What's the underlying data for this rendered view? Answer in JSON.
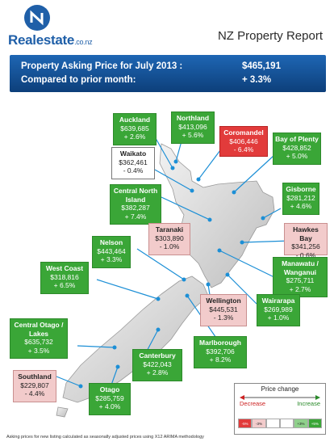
{
  "header": {
    "logo_text": "Realestate",
    "logo_suffix": ".co.nz",
    "report_title": "NZ Property Report"
  },
  "banner": {
    "line1_label": "Property Asking Price for July 2013 :",
    "line1_value": "$465,191",
    "line2_label": "Compared to prior month:",
    "line2_value": "+ 3.3%"
  },
  "colors": {
    "increase": "#3aa637",
    "large_decrease": "#e23b3b",
    "small_decrease": "#f2cbcb",
    "neutral": "#ffffff",
    "banner": "#1e66b4"
  },
  "regions": [
    {
      "name": "Auckland",
      "price": "$639,685",
      "change": "+ 2.6%",
      "color": "green"
    },
    {
      "name": "Northland",
      "price": "$413,096",
      "change": "+ 5.6%",
      "color": "green"
    },
    {
      "name": "Coromandel",
      "price": "$406,446",
      "change": "- 6.4%",
      "color": "red"
    },
    {
      "name": "Bay of Plenty",
      "price": "$428,852",
      "change": "+ 5.0%",
      "color": "green"
    },
    {
      "name": "Waikato",
      "price": "$362,461",
      "change": "- 0.4%",
      "color": "white"
    },
    {
      "name": "Central North Island",
      "price": "$382,287",
      "change": "+ 7.4%",
      "color": "green"
    },
    {
      "name": "Gisborne",
      "price": "$281,212",
      "change": "+ 4.6%",
      "color": "green"
    },
    {
      "name": "Taranaki",
      "price": "$303,890",
      "change": "- 1.0%",
      "color": "pink"
    },
    {
      "name": "Hawkes Bay",
      "price": "$341,256",
      "change": "- 0.6%",
      "color": "pink"
    },
    {
      "name": "Manawatu / Wanganui",
      "price": "$275,711",
      "change": "+ 2.7%",
      "color": "green"
    },
    {
      "name": "Nelson",
      "price": "$443,464",
      "change": "+ 3.3%",
      "color": "green"
    },
    {
      "name": "West Coast",
      "price": "$318,816",
      "change": "+ 6.5%",
      "color": "green"
    },
    {
      "name": "Wellington",
      "price": "$445,531",
      "change": "- 1.3%",
      "color": "pink"
    },
    {
      "name": "Wairarapa",
      "price": "$269,989",
      "change": "+ 1.0%",
      "color": "green"
    },
    {
      "name": "Central Otago / Lakes",
      "price": "$635,732",
      "change": "+ 3.5%",
      "color": "green"
    },
    {
      "name": "Marlborough",
      "price": "$392,706",
      "change": "+ 8.2%",
      "color": "green"
    },
    {
      "name": "Canterbury",
      "price": "$422,043",
      "change": "+ 2.8%",
      "color": "green"
    },
    {
      "name": "Southland",
      "price": "$229,807",
      "change": "- 4.4%",
      "color": "pink"
    },
    {
      "name": "Otago",
      "price": "$285,759",
      "change": "+ 4.0%",
      "color": "green"
    }
  ],
  "legend": {
    "title": "Price change",
    "decrease": "Decrease",
    "increase": "Increase",
    "cells": [
      "-5%",
      "-3%",
      "",
      "",
      "+3%",
      "+5%"
    ]
  },
  "footnote": "Asking prices for new listing calculated as seasonally adjusted prices using X12 ARIMA methodology"
}
